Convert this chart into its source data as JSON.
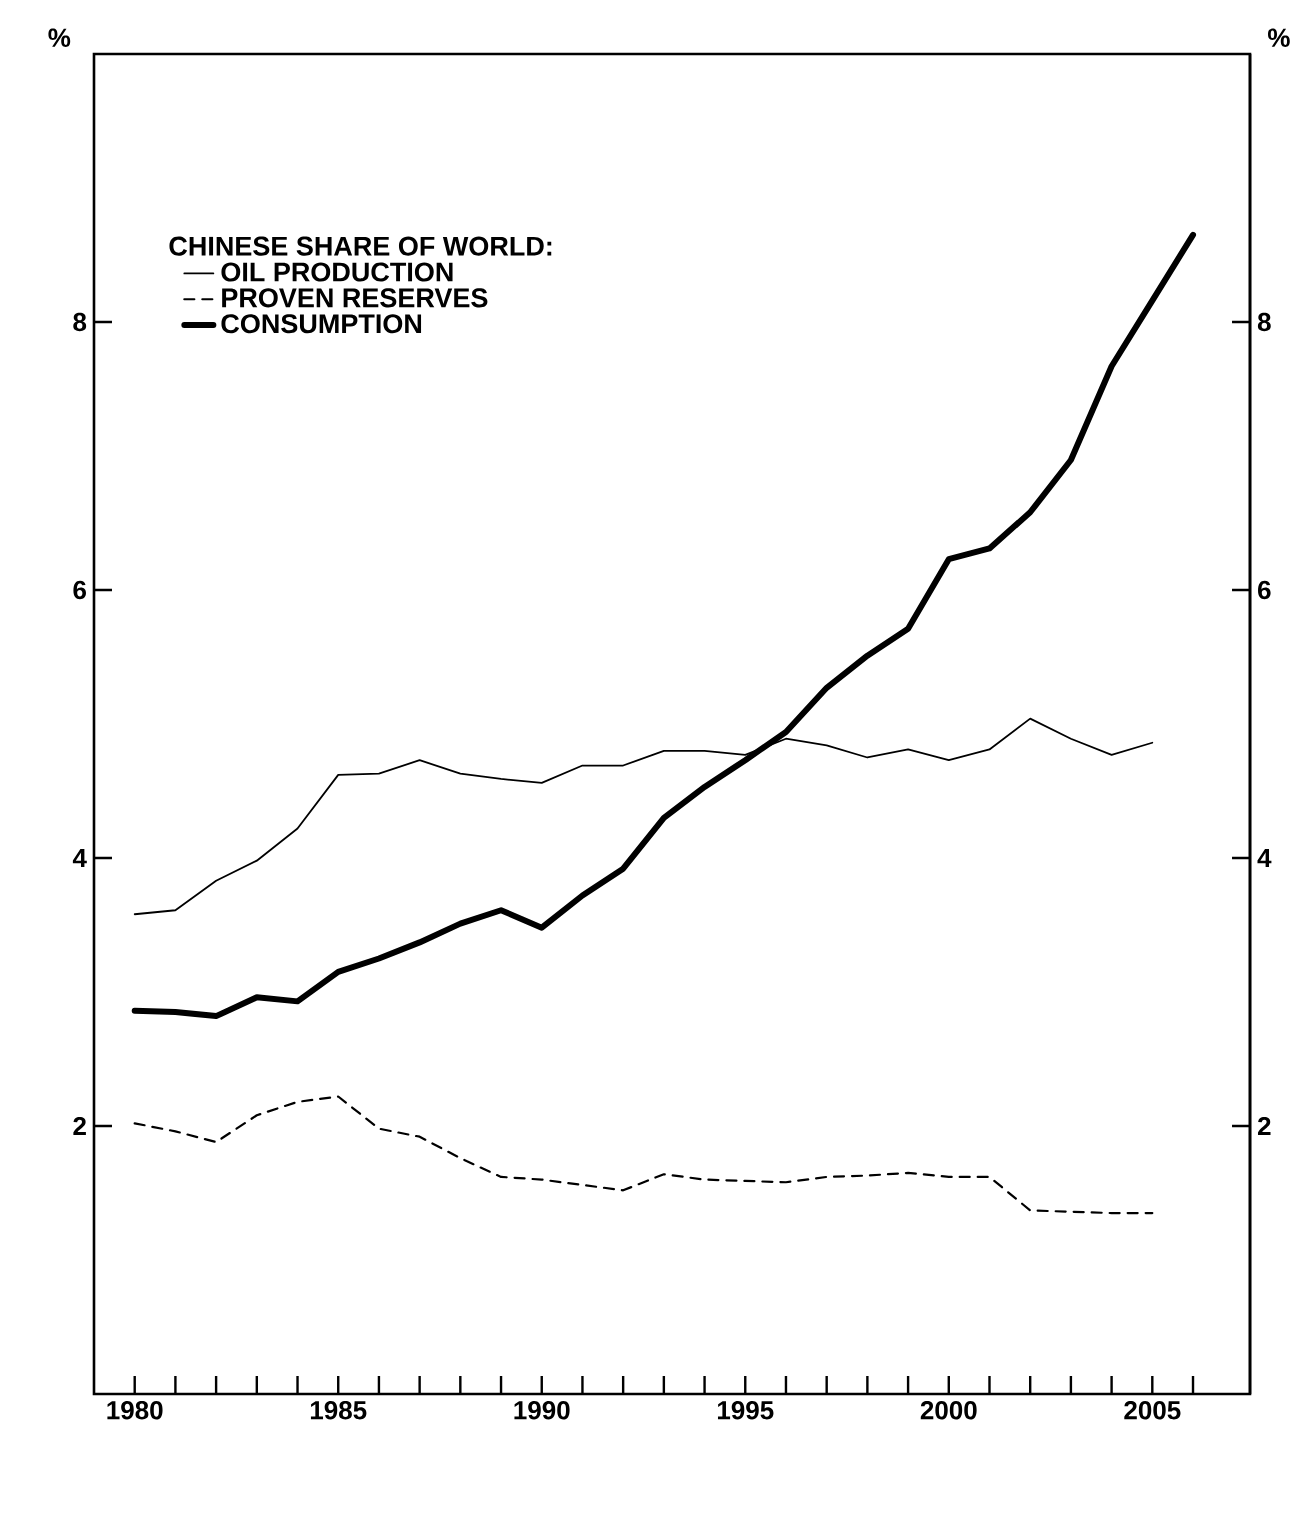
{
  "chart_data": {
    "type": "line",
    "ylabel": "%",
    "y2label": "%",
    "legend_title": "CHINESE SHARE OF WORLD:",
    "x": [
      1980,
      1981,
      1982,
      1983,
      1984,
      1985,
      1986,
      1987,
      1988,
      1989,
      1990,
      1991,
      1992,
      1993,
      1994,
      1995,
      1996,
      1997,
      1998,
      1999,
      2000,
      2001,
      2002,
      2003,
      2004,
      2005,
      2006
    ],
    "series": [
      {
        "name": "OIL PRODUCTION",
        "color": "#000000",
        "line_style": "solid",
        "values": [
          3.58,
          3.61,
          3.83,
          3.98,
          4.22,
          4.62,
          4.63,
          4.73,
          4.63,
          4.59,
          4.56,
          4.69,
          4.69,
          4.8,
          4.8,
          4.77,
          4.89,
          4.84,
          4.75,
          4.81,
          4.73,
          4.81,
          5.04,
          4.89,
          4.77,
          4.86,
          null
        ]
      },
      {
        "name": "PROVEN RESERVES",
        "color": "#000000",
        "line_style": "dashed",
        "values": [
          2.02,
          1.96,
          1.88,
          2.08,
          2.18,
          2.22,
          1.98,
          1.92,
          1.76,
          1.62,
          1.6,
          1.56,
          1.52,
          1.64,
          1.6,
          1.59,
          1.58,
          1.62,
          1.63,
          1.65,
          1.62,
          1.62,
          1.37,
          1.36,
          1.35,
          1.35,
          null
        ]
      },
      {
        "name": "CONSUMPTION",
        "color": "#000000",
        "line_style": "solid",
        "values": [
          2.86,
          2.85,
          2.82,
          2.96,
          2.93,
          3.15,
          3.25,
          3.37,
          3.51,
          3.61,
          3.48,
          3.72,
          3.92,
          4.3,
          4.53,
          4.73,
          4.94,
          5.27,
          5.51,
          5.71,
          6.23,
          6.31,
          6.58,
          6.97,
          7.67,
          8.16,
          8.65
        ]
      }
    ],
    "xlim": [
      1979,
      2007.4
    ],
    "xticks": [
      1980,
      {
        "value": 1981,
        "label": null
      },
      {
        "value": 1982,
        "label": null
      },
      {
        "value": 1983,
        "label": null
      },
      {
        "value": 1984,
        "label": null
      },
      1985,
      {
        "value": 1986,
        "label": null
      },
      {
        "value": 1987,
        "label": null
      },
      {
        "value": 1988,
        "label": null
      },
      {
        "value": 1989,
        "label": null
      },
      1990,
      {
        "value": 1991,
        "label": null
      },
      {
        "value": 1992,
        "label": null
      },
      {
        "value": 1993,
        "label": null
      },
      {
        "value": 1994,
        "label": null
      },
      1995,
      {
        "value": 1996,
        "label": null
      },
      {
        "value": 1997,
        "label": null
      },
      {
        "value": 1998,
        "label": null
      },
      {
        "value": 1999,
        "label": null
      },
      2000,
      {
        "value": 2001,
        "label": null
      },
      {
        "value": 2002,
        "label": null
      },
      {
        "value": 2003,
        "label": null
      },
      {
        "value": 2004,
        "label": null
      },
      2005,
      {
        "value": 2006,
        "label": null
      }
    ],
    "ylim": [
      0,
      10
    ],
    "yticks": [
      2,
      4,
      6,
      8
    ],
    "y2lim": [
      0,
      10
    ],
    "y2ticks": [
      2,
      4,
      6,
      8
    ],
    "grid": false,
    "legend": "top left",
    "marker": "none"
  }
}
